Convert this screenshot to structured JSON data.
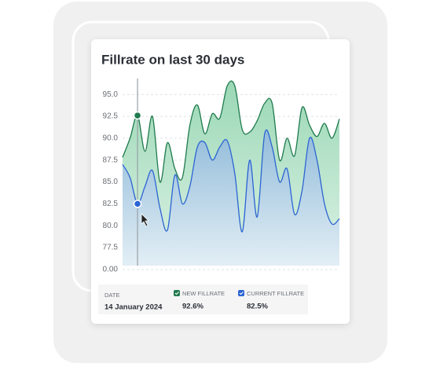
{
  "chart_data": {
    "type": "area",
    "title": "Fillrate on last 30 days",
    "categories": [
      null,
      null,
      null,
      null,
      null,
      null,
      null,
      null,
      null,
      null,
      null,
      null,
      null,
      null,
      null,
      null,
      null,
      null,
      null,
      null,
      null,
      null,
      null,
      null,
      null,
      null,
      null,
      null,
      null,
      null
    ],
    "series": [
      {
        "name": "NEW FILLRATE",
        "color": "#1f7a4d",
        "values": [
          87.8,
          90,
          92.6,
          88.5,
          92.5,
          85,
          89.5,
          86.5,
          85.5,
          91.5,
          93.8,
          90.5,
          92.8,
          92.3,
          96,
          96,
          91,
          90.7,
          92,
          94,
          94,
          87.5,
          90,
          88,
          93.5,
          91.5,
          90.2,
          91.7,
          90,
          92.2
        ]
      },
      {
        "name": "CURRENT FILLRATE",
        "color": "#2b64d3",
        "values": [
          87,
          85.5,
          82.5,
          84.5,
          86.3,
          82,
          79.5,
          85.8,
          82.5,
          84.5,
          89,
          89.5,
          87.5,
          89,
          89.7,
          86,
          79.3,
          87.5,
          81,
          90.5,
          89,
          85,
          86.5,
          81.3,
          84,
          90,
          87.5,
          82.5,
          80.2,
          80.8
        ]
      }
    ],
    "ylim": [
      0,
      97
    ],
    "yticks": [
      {
        "value": 95,
        "label": "95.0"
      },
      {
        "value": 92.5,
        "label": "92.5"
      },
      {
        "value": 90,
        "label": "90.0"
      },
      {
        "value": 87.5,
        "label": "87.5"
      },
      {
        "value": 85,
        "label": "85.0"
      },
      {
        "value": 82.5,
        "label": "82.5"
      },
      {
        "value": 80,
        "label": "80.0"
      },
      {
        "value": 77.5,
        "label": "77.5"
      },
      {
        "value": 0,
        "label": "0.00"
      }
    ],
    "grid": true,
    "hover": {
      "index": 2,
      "date_label": "DATE",
      "date": "14 January 2024",
      "value_labels": [
        "92.6%",
        "82.5%"
      ]
    }
  }
}
